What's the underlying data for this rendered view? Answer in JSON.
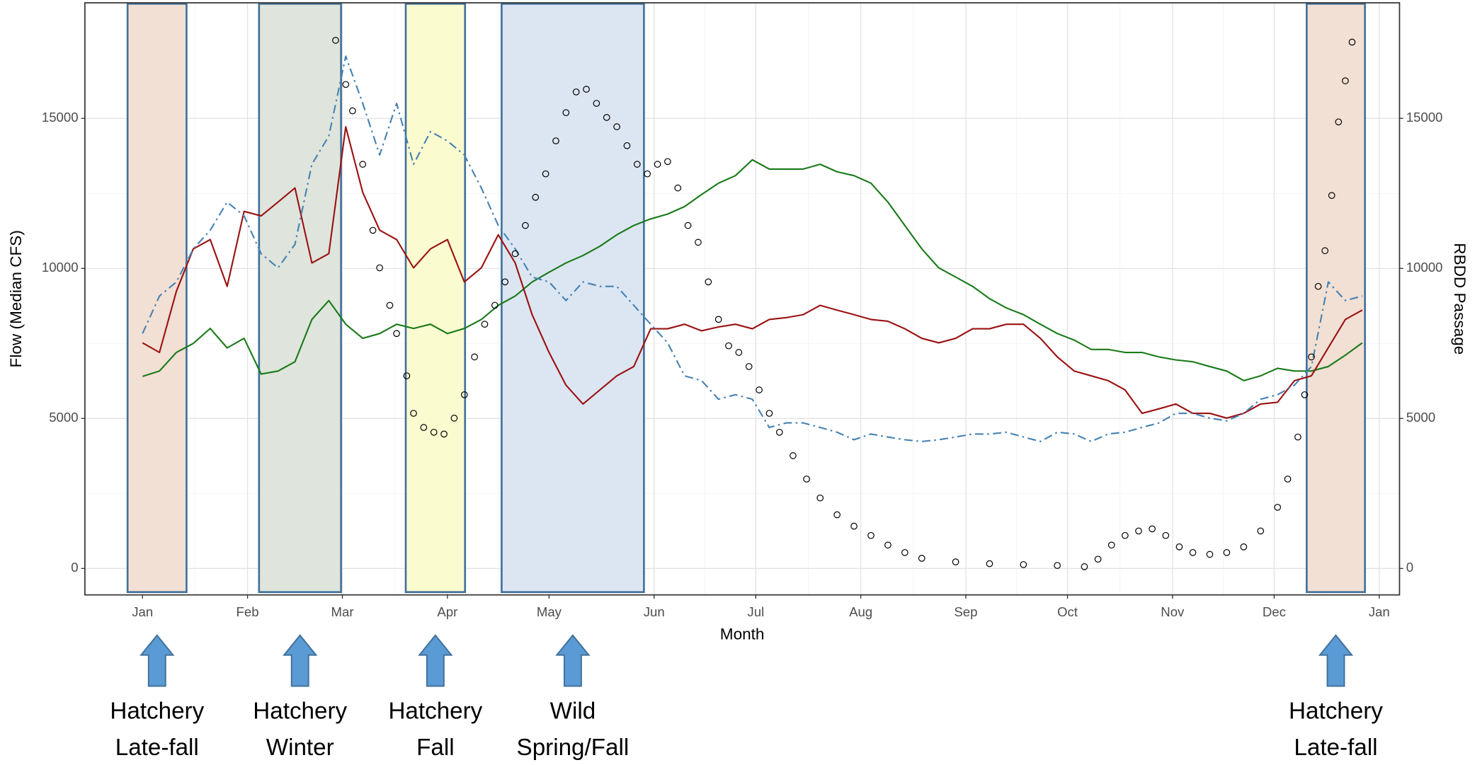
{
  "chart_data": {
    "type": "line",
    "xlabel": "Month",
    "ylabel": "Flow (Median CFS)",
    "y2label": "RBDD Passage",
    "xlim": [
      -17,
      371
    ],
    "ylim": [
      -880,
      18850
    ],
    "y2lim": [
      -880,
      18850
    ],
    "xticks": [
      {
        "value": 0,
        "label": "Jan"
      },
      {
        "value": 31,
        "label": "Feb"
      },
      {
        "value": 59,
        "label": "Mar"
      },
      {
        "value": 90,
        "label": "Apr"
      },
      {
        "value": 120,
        "label": "May"
      },
      {
        "value": 151,
        "label": "Jun"
      },
      {
        "value": 181,
        "label": "Jul"
      },
      {
        "value": 212,
        "label": "Aug"
      },
      {
        "value": 243,
        "label": "Sep"
      },
      {
        "value": 273,
        "label": "Oct"
      },
      {
        "value": 304,
        "label": "Nov"
      },
      {
        "value": 334,
        "label": "Dec"
      },
      {
        "value": 365,
        "label": "Jan"
      }
    ],
    "yticks": [
      0,
      5000,
      10000,
      15000
    ],
    "y2ticks": [
      0,
      5000,
      10000,
      15000
    ],
    "grid": true,
    "periods": [
      {
        "start": -4.4,
        "end": 13,
        "color": "#f2e0d4",
        "label": [
          "Hatchery",
          "Late-fall"
        ]
      },
      {
        "start": 34.4,
        "end": 58.6,
        "color": "#dfe5dc",
        "label": [
          "Hatchery",
          "Winter"
        ]
      },
      {
        "start": 77.7,
        "end": 95.2,
        "color": "#fbfbd0",
        "label": [
          "Hatchery",
          "Fall"
        ]
      },
      {
        "start": 106,
        "end": 148,
        "color": "#dce6f2",
        "label": [
          "Wild",
          "Spring/Fall"
        ]
      },
      {
        "start": 343.6,
        "end": 360.8,
        "color": "#f2e0d4",
        "label": [
          "Hatchery",
          "Late-fall"
        ]
      }
    ],
    "series": [
      {
        "color": "#1a7a1a",
        "mark": "line",
        "dash": "solid",
        "x": [
          0,
          5,
          10,
          15,
          20,
          25,
          30,
          35,
          40,
          45,
          50,
          55,
          60,
          65,
          70,
          75,
          80,
          85,
          90,
          95,
          100,
          105,
          110,
          115,
          120,
          125,
          130,
          135,
          140,
          145,
          150,
          155,
          160,
          165,
          170,
          175,
          180,
          185,
          190,
          195,
          200,
          205,
          210,
          215,
          220,
          225,
          230,
          235,
          240,
          245,
          250,
          255,
          260,
          265,
          270,
          275,
          280,
          285,
          290,
          295,
          300,
          305,
          310,
          315,
          320,
          325,
          330,
          335,
          340,
          345,
          350,
          355,
          360
        ],
        "values": [
          6400,
          6580,
          7200,
          7500,
          8000,
          7350,
          7670,
          6480,
          6580,
          6890,
          8300,
          8930,
          8140,
          7670,
          7830,
          8140,
          8000,
          8140,
          7830,
          8000,
          8300,
          8770,
          9080,
          9550,
          9870,
          10180,
          10430,
          10740,
          11120,
          11430,
          11650,
          11810,
          12060,
          12460,
          12840,
          13090,
          13620,
          13310,
          13310,
          13310,
          13470,
          13220,
          13090,
          12840,
          12210,
          11430,
          10650,
          10020,
          9710,
          9400,
          8990,
          8680,
          8460,
          8140,
          7830,
          7610,
          7300,
          7300,
          7200,
          7200,
          7050,
          6950,
          6890,
          6730,
          6580,
          6260,
          6420,
          6670,
          6580,
          6580,
          6730,
          7110,
          7520
        ]
      },
      {
        "color": "#9b1212",
        "mark": "line",
        "dash": "solid",
        "x": [
          0,
          5,
          10,
          15,
          20,
          25,
          30,
          35,
          40,
          45,
          50,
          55,
          60,
          65,
          70,
          75,
          80,
          85,
          90,
          95,
          100,
          105,
          110,
          115,
          120,
          125,
          130,
          135,
          140,
          145,
          150,
          155,
          160,
          165,
          170,
          175,
          180,
          185,
          190,
          195,
          200,
          205,
          210,
          215,
          220,
          225,
          230,
          235,
          240,
          245,
          250,
          255,
          260,
          265,
          270,
          275,
          280,
          285,
          290,
          295,
          300,
          305,
          310,
          315,
          320,
          325,
          330,
          335,
          340,
          345,
          350,
          355,
          360
        ],
        "values": [
          7520,
          7200,
          9240,
          10650,
          10960,
          9400,
          11900,
          11750,
          12210,
          12680,
          10180,
          10490,
          14720,
          12530,
          11270,
          10960,
          10020,
          10650,
          10960,
          9550,
          10020,
          11120,
          10180,
          8460,
          7200,
          6110,
          5480,
          5950,
          6420,
          6730,
          7990,
          7990,
          8140,
          7920,
          8050,
          8140,
          7990,
          8300,
          8360,
          8460,
          8770,
          8610,
          8460,
          8300,
          8240,
          7990,
          7670,
          7520,
          7670,
          7990,
          7990,
          8140,
          8140,
          7670,
          7050,
          6580,
          6420,
          6260,
          5950,
          5170,
          5320,
          5480,
          5170,
          5170,
          5010,
          5170,
          5480,
          5540,
          6260,
          6420,
          7360,
          8300,
          8610
        ]
      },
      {
        "color": "#4682b4",
        "mark": "line",
        "dash": "dashdot",
        "x": [
          0,
          5,
          10,
          15,
          20,
          25,
          30,
          35,
          40,
          45,
          50,
          55,
          60,
          65,
          70,
          75,
          80,
          85,
          90,
          95,
          100,
          105,
          110,
          115,
          120,
          125,
          130,
          135,
          140,
          145,
          150,
          155,
          160,
          165,
          170,
          175,
          180,
          185,
          190,
          195,
          200,
          205,
          210,
          215,
          220,
          225,
          230,
          235,
          240,
          245,
          250,
          255,
          260,
          265,
          270,
          275,
          280,
          285,
          290,
          295,
          300,
          305,
          310,
          315,
          320,
          325,
          330,
          335,
          340,
          345,
          350,
          355,
          360
        ],
        "values": [
          7830,
          9080,
          9550,
          10650,
          11270,
          12210,
          11750,
          10490,
          10020,
          10800,
          13470,
          14410,
          17070,
          15500,
          13780,
          15500,
          13470,
          14560,
          14250,
          13780,
          12680,
          11430,
          10650,
          9710,
          9550,
          8930,
          9550,
          9400,
          9400,
          8770,
          8140,
          7520,
          6420,
          6260,
          5640,
          5790,
          5640,
          4700,
          4850,
          4850,
          4700,
          4540,
          4290,
          4480,
          4380,
          4290,
          4230,
          4290,
          4380,
          4480,
          4480,
          4540,
          4380,
          4230,
          4540,
          4480,
          4230,
          4480,
          4540,
          4700,
          4850,
          5170,
          5170,
          5010,
          4920,
          5170,
          5640,
          5790,
          6110,
          6730,
          9550,
          8930,
          9080
        ]
      },
      {
        "color": "#000000",
        "mark": "points",
        "axis": "y2",
        "x": [
          57,
          60,
          62,
          65,
          68,
          70,
          73,
          75,
          78,
          80,
          83,
          86,
          89,
          92,
          95,
          98,
          101,
          104,
          107,
          110,
          113,
          116,
          119,
          122,
          125,
          128,
          131,
          134,
          137,
          140,
          143,
          146,
          149,
          152,
          155,
          158,
          161,
          164,
          167,
          170,
          173,
          176,
          179,
          182,
          185,
          188,
          192,
          196,
          200,
          205,
          210,
          215,
          220,
          225,
          230,
          240,
          250,
          260,
          270,
          278,
          282,
          286,
          290,
          294,
          298,
          302,
          306,
          310,
          315,
          320,
          325,
          330,
          335,
          338,
          341,
          343,
          345,
          347,
          349,
          351,
          353,
          355,
          357
        ],
        "values": [
          17600,
          16130,
          15250,
          13470,
          11270,
          10020,
          8770,
          7830,
          6420,
          5170,
          4700,
          4540,
          4480,
          5010,
          5790,
          7050,
          8140,
          8770,
          9550,
          10490,
          11430,
          12370,
          13150,
          14250,
          15190,
          15880,
          15970,
          15500,
          15030,
          14720,
          14090,
          13470,
          13150,
          13470,
          13560,
          12680,
          11430,
          10870,
          9550,
          8300,
          7420,
          7200,
          6730,
          5950,
          5170,
          4540,
          3760,
          2980,
          2350,
          1790,
          1410,
          1100,
          780,
          530,
          340,
          220,
          160,
          130,
          100,
          60,
          310,
          780,
          1100,
          1250,
          1320,
          1100,
          720,
          530,
          470,
          530,
          720,
          1250,
          2040,
          2980,
          4380,
          5790,
          7050,
          9400,
          10590,
          12430,
          14880,
          16250,
          17540
        ]
      }
    ]
  }
}
